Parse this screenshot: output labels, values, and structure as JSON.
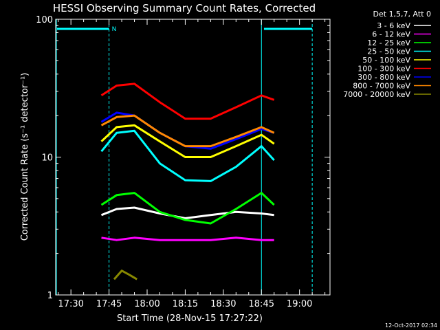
{
  "chart_data": {
    "type": "line",
    "title": "HESSI Observing Summary Count Rates, Corrected",
    "xlabel": "Start Time (28-Nov-15 17:27:22)",
    "ylabel": "Corrected Count Rate (s⁻¹ detector⁻¹)",
    "yscale": "log",
    "ylim": [
      1,
      100
    ],
    "xlim": [
      "17:24",
      "19:12"
    ],
    "x_ticks": [
      "17:30",
      "17:45",
      "18:00",
      "18:15",
      "18:30",
      "18:45",
      "19:00"
    ],
    "y_ticks": [
      "1",
      "10",
      "100"
    ],
    "legend": {
      "title": "Det 1,5,7, Att 0",
      "placement": "outside-right"
    },
    "series": [
      {
        "name": "3 - 6 keV",
        "color": "#ffffff",
        "x": [
          "17:42",
          "17:48",
          "17:55",
          "18:05",
          "18:15",
          "18:25",
          "18:35",
          "18:45",
          "18:50"
        ],
        "y": [
          3.8,
          4.2,
          4.3,
          3.9,
          3.6,
          3.8,
          4.0,
          3.9,
          3.8
        ]
      },
      {
        "name": "6 - 12 keV",
        "color": "#ff00ff",
        "x": [
          "17:42",
          "17:48",
          "17:55",
          "18:05",
          "18:15",
          "18:25",
          "18:35",
          "18:45",
          "18:50"
        ],
        "y": [
          2.6,
          2.5,
          2.6,
          2.5,
          2.5,
          2.5,
          2.6,
          2.5,
          2.5
        ]
      },
      {
        "name": "12 - 25 keV",
        "color": "#00ff00",
        "x": [
          "17:42",
          "17:48",
          "17:55",
          "18:05",
          "18:15",
          "18:25",
          "18:35",
          "18:45",
          "18:50"
        ],
        "y": [
          4.5,
          5.3,
          5.5,
          4.0,
          3.5,
          3.3,
          4.2,
          5.5,
          4.5
        ]
      },
      {
        "name": "25 - 50 keV",
        "color": "#00ffff",
        "x": [
          "17:42",
          "17:48",
          "17:55",
          "18:05",
          "18:15",
          "18:25",
          "18:35",
          "18:45",
          "18:50"
        ],
        "y": [
          11,
          15,
          15.5,
          9,
          6.8,
          6.7,
          8.5,
          12,
          9.5
        ]
      },
      {
        "name": "50 - 100 keV",
        "color": "#ffff00",
        "x": [
          "17:42",
          "17:48",
          "17:55",
          "18:05",
          "18:15",
          "18:25",
          "18:35",
          "18:45",
          "18:50"
        ],
        "y": [
          13,
          16.5,
          17,
          13,
          10,
          10,
          12,
          14.5,
          12.5
        ]
      },
      {
        "name": "100 - 300 keV",
        "color": "#ff0000",
        "x": [
          "17:42",
          "17:48",
          "17:55",
          "18:05",
          "18:15",
          "18:25",
          "18:35",
          "18:45",
          "18:50"
        ],
        "y": [
          28,
          33,
          34,
          25,
          19,
          19,
          23,
          28,
          26
        ]
      },
      {
        "name": "300 - 800 keV",
        "color": "#0000ff",
        "x": [
          "17:42",
          "17:48",
          "17:55",
          "18:05",
          "18:15",
          "18:25",
          "18:35",
          "18:45",
          "18:50"
        ],
        "y": [
          18,
          21,
          20,
          15,
          12,
          11.5,
          13.5,
          16,
          15
        ]
      },
      {
        "name": "800 - 7000 keV",
        "color": "#ff8800",
        "x": [
          "17:42",
          "17:48",
          "17:55",
          "18:05",
          "18:15",
          "18:25",
          "18:35",
          "18:45",
          "18:50"
        ],
        "y": [
          17,
          19.5,
          20,
          15,
          12,
          12,
          14,
          16.5,
          15
        ]
      },
      {
        "name": "7000 - 20000 keV",
        "color": "#888800",
        "x": [
          "17:47",
          "17:50",
          "17:53",
          "17:56"
        ],
        "y": [
          1.3,
          1.5,
          1.4,
          1.3
        ]
      }
    ],
    "observing_flags": [
      {
        "label": "N",
        "color": "#00ffff"
      }
    ]
  },
  "timestamp": "12-Oct-2017 02:34"
}
